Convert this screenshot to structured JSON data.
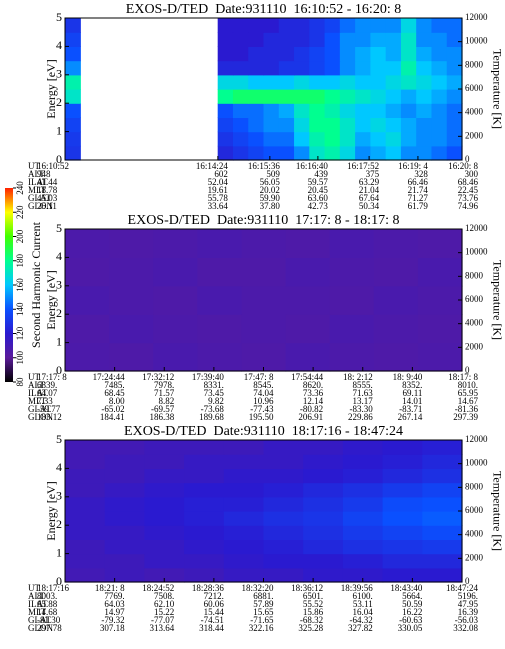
{
  "chart_data": [
    {
      "type": "heatmap",
      "title": "EXOS-D/TED  Date:931110  16:10:52 - 16:20: 8",
      "ylabel": "Energy [eV]",
      "y2label": "Temperature [K]",
      "ylim": [
        0,
        5
      ],
      "yticks": [
        0,
        1,
        2,
        3,
        4,
        5
      ],
      "y2lim": [
        0,
        12000
      ],
      "y2ticks": [
        0,
        2000,
        4000,
        6000,
        8000,
        10000,
        12000
      ],
      "ephemeris": {
        "labels": [
          "UT",
          "ALT",
          "ILAT",
          "MLT",
          "GLAT",
          "GLON"
        ],
        "rows": [
          [
            "16:10:52",
            "16:14:24",
            "16:15:36",
            "16:16:40",
            "16:17:52",
            "16:19: 4",
            "16:20: 8"
          ],
          [
            "948",
            "602",
            "509",
            "439",
            "375",
            "328",
            "300"
          ],
          [
            "41.44",
            "52.04",
            "56.05",
            "59.57",
            "63.29",
            "66.46",
            "68.46"
          ],
          [
            "18.78",
            "19.61",
            "20.02",
            "20.45",
            "21.04",
            "21.74",
            "22.45"
          ],
          [
            "45.03",
            "55.78",
            "59.90",
            "63.60",
            "67.64",
            "71.27",
            "73.76"
          ],
          [
            "26.11",
            "33.64",
            "37.80",
            "42.73",
            "50.34",
            "61.79",
            "74.96"
          ]
        ]
      },
      "z": [
        [
          130,
          null,
          null,
          null,
          null,
          null,
          null,
          null,
          null,
          null,
          125,
          130,
          135,
          140,
          140,
          150,
          170,
          175,
          165,
          150,
          155,
          160,
          150,
          150,
          145,
          140
        ],
        [
          132,
          null,
          null,
          null,
          null,
          null,
          null,
          null,
          null,
          null,
          130,
          135,
          140,
          145,
          145,
          160,
          175,
          180,
          170,
          155,
          160,
          165,
          155,
          150,
          150,
          145
        ],
        [
          135,
          null,
          null,
          null,
          null,
          null,
          null,
          null,
          null,
          null,
          135,
          140,
          145,
          150,
          150,
          165,
          180,
          180,
          170,
          160,
          165,
          160,
          155,
          150,
          150,
          145
        ],
        [
          140,
          null,
          null,
          null,
          null,
          null,
          null,
          null,
          null,
          null,
          140,
          145,
          145,
          150,
          155,
          170,
          180,
          175,
          165,
          160,
          160,
          155,
          150,
          155,
          150,
          145
        ],
        [
          170,
          null,
          null,
          null,
          null,
          null,
          null,
          null,
          null,
          null,
          180,
          185,
          185,
          185,
          185,
          185,
          185,
          180,
          175,
          170,
          165,
          160,
          155,
          160,
          155,
          150
        ],
        [
          175,
          null,
          null,
          null,
          null,
          null,
          null,
          null,
          null,
          null,
          165,
          165,
          160,
          160,
          160,
          165,
          160,
          160,
          165,
          160,
          160,
          165,
          170,
          165,
          160,
          155
        ],
        [
          150,
          null,
          null,
          null,
          null,
          null,
          null,
          null,
          null,
          null,
          125,
          125,
          125,
          125,
          130,
          130,
          135,
          140,
          150,
          155,
          160,
          160,
          175,
          160,
          155,
          150
        ],
        [
          140,
          null,
          null,
          null,
          null,
          null,
          null,
          null,
          null,
          null,
          120,
          120,
          125,
          125,
          125,
          130,
          135,
          140,
          150,
          155,
          160,
          155,
          170,
          155,
          150,
          150
        ],
        [
          135,
          null,
          null,
          null,
          null,
          null,
          null,
          null,
          null,
          null,
          120,
          120,
          120,
          125,
          125,
          125,
          130,
          140,
          150,
          150,
          155,
          155,
          170,
          150,
          150,
          145
        ],
        [
          130,
          null,
          null,
          null,
          null,
          null,
          null,
          null,
          null,
          null,
          120,
          120,
          120,
          120,
          125,
          125,
          130,
          135,
          145,
          150,
          150,
          150,
          165,
          150,
          145,
          145
        ]
      ]
    },
    {
      "type": "heatmap",
      "title": "EXOS-D/TED  Date:931110  17:17: 8 - 18:17: 8",
      "ylabel": "Energy [eV]",
      "y2label": "Temperature [K]",
      "ylim": [
        0,
        5
      ],
      "yticks": [
        0,
        1,
        2,
        3,
        4,
        5
      ],
      "y2lim": [
        0,
        12000
      ],
      "y2ticks": [
        0,
        2000,
        4000,
        6000,
        8000,
        10000,
        12000
      ],
      "clim": [
        80,
        240
      ],
      "cticks": [
        80,
        100,
        120,
        140,
        160,
        180,
        200,
        220,
        240
      ],
      "clabel": "Second Harmonic Current",
      "colorscale": [
        "#000000",
        "#5a1a9a",
        "#2a1ad0",
        "#0a50ff",
        "#00c8ff",
        "#00ff90",
        "#40ff00",
        "#ffff00",
        "#ff2000"
      ],
      "ephemeris": {
        "labels": [
          "UT",
          "ALT",
          "ILAT",
          "MLT",
          "GLAT",
          "GLON"
        ],
        "rows": [
          [
            "17:17: 8",
            "17:24:44",
            "17:32:12",
            "17:39:40",
            "17:47: 8",
            "17:54:44",
            "18: 2:12",
            "18: 9:40",
            "18:17: 8"
          ],
          [
            "6839.",
            "7485.",
            "7978.",
            "8331.",
            "8545.",
            "8620.",
            "8555.",
            "8352.",
            "8010."
          ],
          [
            "64.07",
            "68.45",
            "71.57",
            "73.45",
            "74.04",
            "73.36",
            "71.63",
            "69.11",
            "65.95"
          ],
          [
            "7.33",
            "8.00",
            "8.82",
            "9.82",
            "10.96",
            "12.14",
            "13.17",
            "14.01",
            "14.67"
          ],
          [
            "-59.77",
            "-65.02",
            "-69.57",
            "-73.68",
            "-77.43",
            "-80.82",
            "-83.30",
            "-83.71",
            "-81.36"
          ],
          [
            "183.12",
            "184.41",
            "186.38",
            "189.68",
            "195.50",
            "206.91",
            "229.86",
            "267.14",
            "297.39"
          ]
        ]
      },
      "z": [
        [
          106,
          105,
          107,
          106,
          105,
          107,
          106,
          105,
          106
        ],
        [
          105,
          107,
          106,
          105,
          106,
          105,
          107,
          106,
          105
        ],
        [
          107,
          106,
          105,
          107,
          106,
          106,
          105,
          107,
          106
        ],
        [
          105,
          106,
          107,
          105,
          105,
          107,
          106,
          105,
          107
        ],
        [
          106,
          105,
          106,
          107,
          106,
          105,
          107,
          106,
          105
        ]
      ]
    },
    {
      "type": "heatmap",
      "title": "EXOS-D/TED  Date:931110  18:17:16 - 18:47:24",
      "ylabel": "Energy [eV]",
      "y2label": "Temperature [K]",
      "ylim": [
        0,
        5
      ],
      "yticks": [
        0,
        1,
        2,
        3,
        4,
        5
      ],
      "y2lim": [
        0,
        12000
      ],
      "y2ticks": [
        0,
        2000,
        4000,
        6000,
        8000,
        10000,
        12000
      ],
      "ephemeris": {
        "labels": [
          "UT",
          "ALT",
          "ILAT",
          "MLT",
          "GLAT",
          "GLON"
        ],
        "rows": [
          [
            "18:17:16",
            "18:21: 8",
            "18:24:52",
            "18:28:36",
            "18:32:20",
            "18:36:12",
            "18:39:56",
            "18:43:40",
            "18:47:24"
          ],
          [
            "8003.",
            "7769.",
            "7508.",
            "7212.",
            "6881.",
            "6501.",
            "6100.",
            "5664.",
            "5196."
          ],
          [
            "65.88",
            "64.03",
            "62.10",
            "60.06",
            "57.89",
            "55.52",
            "53.11",
            "50.59",
            "47.95"
          ],
          [
            "14.68",
            "14.97",
            "15.22",
            "15.44",
            "15.65",
            "15.86",
            "16.04",
            "16.22",
            "16.39"
          ],
          [
            "-81.30",
            "-79.32",
            "-77.07",
            "-74.51",
            "-71.65",
            "-68.32",
            "-64.32",
            "-60.63",
            "-56.03"
          ],
          [
            "297.78",
            "307.18",
            "313.64",
            "318.44",
            "322.16",
            "325.28",
            "327.82",
            "330.05",
            "332.08"
          ]
        ]
      },
      "z": [
        [
          110,
          112,
          110,
          112,
          115,
          115,
          118,
          118,
          120,
          120
        ],
        [
          112,
          112,
          115,
          115,
          118,
          120,
          120,
          122,
          125,
          125
        ],
        [
          112,
          115,
          115,
          118,
          120,
          122,
          125,
          128,
          130,
          132
        ],
        [
          115,
          115,
          118,
          120,
          122,
          125,
          128,
          132,
          135,
          138
        ],
        [
          115,
          118,
          120,
          122,
          125,
          128,
          130,
          135,
          140,
          142
        ],
        [
          115,
          118,
          120,
          122,
          122,
          125,
          128,
          132,
          138,
          140
        ],
        [
          112,
          115,
          118,
          120,
          120,
          122,
          125,
          128,
          132,
          135
        ],
        [
          112,
          112,
          115,
          115,
          118,
          118,
          120,
          122,
          125,
          128
        ],
        [
          110,
          112,
          112,
          115,
          115,
          115,
          118,
          120,
          122,
          125
        ],
        [
          110,
          110,
          112,
          112,
          112,
          115,
          115,
          118,
          120,
          122
        ]
      ]
    }
  ]
}
